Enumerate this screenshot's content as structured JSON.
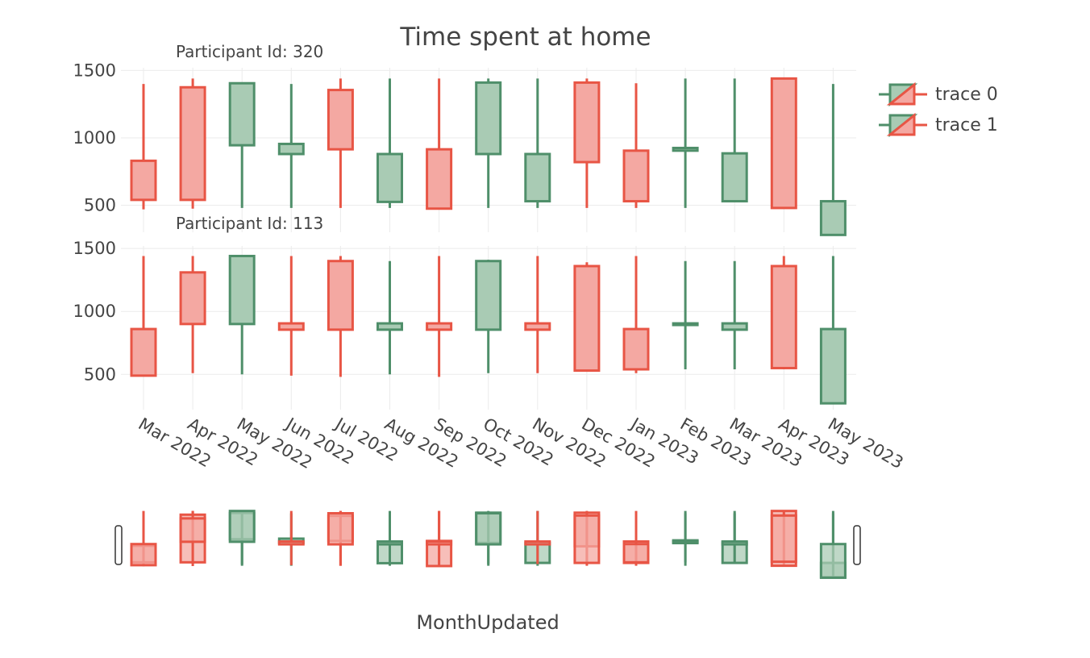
{
  "chart_data": {
    "type": "candlestick",
    "title": "Time spent at home",
    "xlabel": "MonthUpdated",
    "categories": [
      "Mar 2022",
      "Apr 2022",
      "May 2022",
      "Jun 2022",
      "Jul 2022",
      "Aug 2022",
      "Sep 2022",
      "Oct 2022",
      "Nov 2022",
      "Dec 2022",
      "Jan 2023",
      "Feb 2023",
      "Mar 2023",
      "Apr 2023",
      "May 2023"
    ],
    "increasing_color": "#4f8f6a",
    "decreasing_color": "#e85545",
    "increasing_fill": "#a9cbb4",
    "decreasing_fill": "#f4a8a2",
    "legend": [
      {
        "name": "trace 0"
      },
      {
        "name": "trace 1"
      }
    ],
    "legend_position": "top-right",
    "grid": true,
    "panels": [
      {
        "subtitle": "Participant Id: 320",
        "ylim": [
          300,
          1520
        ],
        "yticks": [
          "500",
          "1000",
          "1500"
        ],
        "ytick_values": [
          500,
          1000,
          1500
        ],
        "candles": [
          {
            "low": 470,
            "q_low": 540,
            "q_high": 830,
            "high": 1400,
            "dir": "dec"
          },
          {
            "low": 475,
            "q_low": 540,
            "q_high": 1375,
            "high": 1440,
            "dir": "dec"
          },
          {
            "low": 480,
            "q_low": 945,
            "q_high": 1405,
            "high": 1410,
            "dir": "inc"
          },
          {
            "low": 480,
            "q_low": 880,
            "q_high": 955,
            "high": 1400,
            "dir": "inc"
          },
          {
            "low": 480,
            "q_low": 915,
            "q_high": 1355,
            "high": 1440,
            "dir": "dec"
          },
          {
            "low": 480,
            "q_low": 525,
            "q_high": 880,
            "high": 1440,
            "dir": "inc"
          },
          {
            "low": 475,
            "q_low": 475,
            "q_high": 915,
            "high": 1440,
            "dir": "dec"
          },
          {
            "low": 480,
            "q_low": 880,
            "q_high": 1410,
            "high": 1440,
            "dir": "inc"
          },
          {
            "low": 480,
            "q_low": 530,
            "q_high": 880,
            "high": 1440,
            "dir": "inc"
          },
          {
            "low": 480,
            "q_low": 820,
            "q_high": 1410,
            "high": 1440,
            "dir": "dec"
          },
          {
            "low": 480,
            "q_low": 530,
            "q_high": 905,
            "high": 1405,
            "dir": "dec"
          },
          {
            "low": 480,
            "q_low": 905,
            "q_high": 925,
            "high": 1440,
            "dir": "inc"
          },
          {
            "low": 530,
            "q_low": 530,
            "q_high": 885,
            "high": 1440,
            "dir": "inc"
          },
          {
            "low": 480,
            "q_low": 480,
            "q_high": 1440,
            "high": 1440,
            "dir": "dec"
          },
          {
            "low": 280,
            "q_low": 280,
            "q_high": 530,
            "high": 1400,
            "dir": "inc"
          }
        ]
      },
      {
        "subtitle": "Participant Id: 113",
        "ylim": [
          220,
          1520
        ],
        "yticks": [
          "500",
          "1000",
          "1500"
        ],
        "ytick_values": [
          500,
          1000,
          1500
        ],
        "candles": [
          {
            "low": 490,
            "q_low": 490,
            "q_high": 860,
            "high": 1440,
            "dir": "dec"
          },
          {
            "low": 510,
            "q_low": 900,
            "q_high": 1310,
            "high": 1440,
            "dir": "dec"
          },
          {
            "low": 500,
            "q_low": 900,
            "q_high": 1440,
            "high": 1440,
            "dir": "inc"
          },
          {
            "low": 490,
            "q_low": 855,
            "q_high": 905,
            "high": 1440,
            "dir": "dec"
          },
          {
            "low": 480,
            "q_low": 855,
            "q_high": 1400,
            "high": 1440,
            "dir": "dec"
          },
          {
            "low": 500,
            "q_low": 855,
            "q_high": 905,
            "high": 1400,
            "dir": "inc"
          },
          {
            "low": 480,
            "q_low": 855,
            "q_high": 905,
            "high": 1440,
            "dir": "dec"
          },
          {
            "low": 510,
            "q_low": 855,
            "q_high": 1400,
            "high": 1410,
            "dir": "inc"
          },
          {
            "low": 510,
            "q_low": 855,
            "q_high": 905,
            "high": 1440,
            "dir": "dec"
          },
          {
            "low": 530,
            "q_low": 530,
            "q_high": 1360,
            "high": 1390,
            "dir": "dec"
          },
          {
            "low": 510,
            "q_low": 540,
            "q_high": 860,
            "high": 1440,
            "dir": "dec"
          },
          {
            "low": 540,
            "q_low": 895,
            "q_high": 905,
            "high": 1400,
            "dir": "inc"
          },
          {
            "low": 540,
            "q_low": 855,
            "q_high": 905,
            "high": 1400,
            "dir": "inc"
          },
          {
            "low": 540,
            "q_low": 550,
            "q_high": 1360,
            "high": 1440,
            "dir": "dec"
          },
          {
            "low": 270,
            "q_low": 270,
            "q_high": 860,
            "high": 1440,
            "dir": "inc"
          }
        ]
      }
    ]
  }
}
